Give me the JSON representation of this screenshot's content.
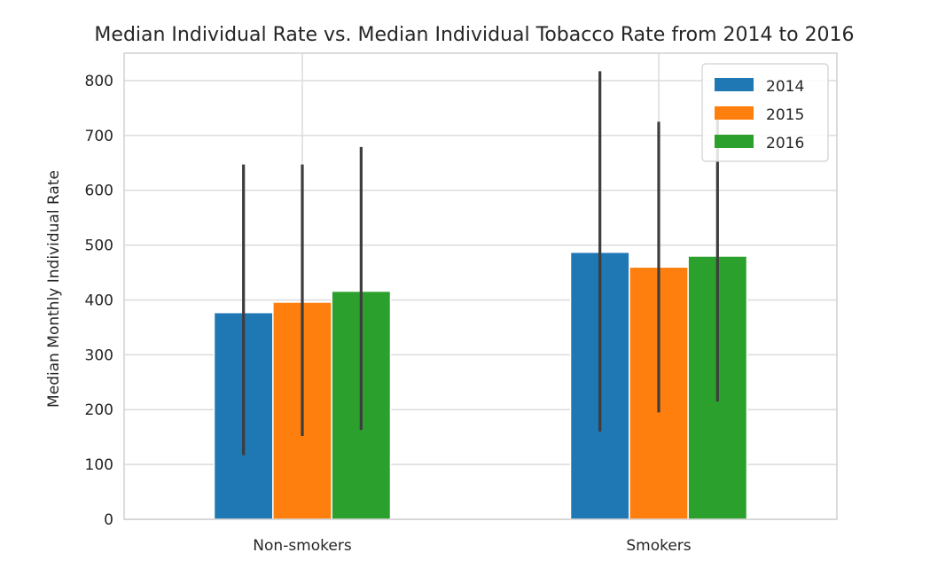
{
  "chart_data": {
    "type": "bar",
    "title": "Median Individual Rate vs. Median Individual Tobacco Rate from 2014 to 2016",
    "xlabel": "",
    "ylabel": "Median Monthly Individual Rate",
    "categories": [
      "Non-smokers",
      "Smokers"
    ],
    "series": [
      {
        "name": "2014",
        "color": "#1f77b4",
        "values": [
          377,
          487
        ],
        "err_low": [
          117,
          160
        ],
        "err_high": [
          647,
          817
        ]
      },
      {
        "name": "2015",
        "color": "#ff7f0e",
        "values": [
          396,
          460
        ],
        "err_low": [
          152,
          195
        ],
        "err_high": [
          647,
          725
        ]
      },
      {
        "name": "2016",
        "color": "#2ca02c",
        "values": [
          416,
          480
        ],
        "err_low": [
          163,
          215
        ],
        "err_high": [
          679,
          742
        ]
      }
    ],
    "ylim": [
      0,
      850
    ],
    "yticks": [
      0,
      100,
      200,
      300,
      400,
      500,
      600,
      700,
      800
    ],
    "grid": true,
    "legend": {
      "placement": "top-right"
    }
  }
}
